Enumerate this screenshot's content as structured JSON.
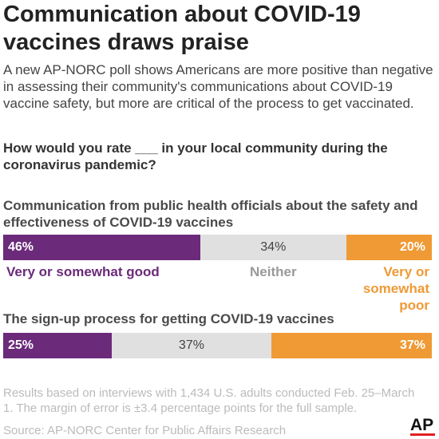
{
  "title": "Communication about COVID-19 vaccines draws praise",
  "intro": "A new AP-NORC poll shows Americans are more positive than negative in assessing their community's communications about COVID-19 vaccine safety, but more are critical of the process to get vaccinated.",
  "question": "How would you rate ___ in your local community during the coronavirus pandemic?",
  "colors": {
    "good": "#6b2a7a",
    "neither": "#e0e0e0",
    "poor": "#ef9a35",
    "neither_text": "#999999"
  },
  "chart_data": {
    "type": "bar",
    "orientation": "horizontal",
    "stacked": true,
    "series_names": [
      "Very or somewhat good",
      "Neither",
      "Very or somewhat poor"
    ],
    "categories": [
      "Communication from public health officials about the safety and effectiveness of COVID-19 vaccines",
      "The sign-up process for getting COVID-19 vaccines"
    ],
    "values": [
      [
        46,
        34,
        20
      ],
      [
        25,
        37,
        37
      ]
    ],
    "value_labels": [
      [
        "46%",
        "34%",
        "20%"
      ],
      [
        "25%",
        "37%",
        "37%"
      ]
    ],
    "legend_labels": [
      "Very or somewhat good",
      "Neither",
      "Very or somewhat poor"
    ]
  },
  "note": "Results based on interviews with 1,434 U.S. adults conducted Feb. 25–March 1. The margin of error is ±3.4 percentage points for the full sample.",
  "source": "Source: AP-NORC Center for Public Affairs Research",
  "logo_text": "AP"
}
